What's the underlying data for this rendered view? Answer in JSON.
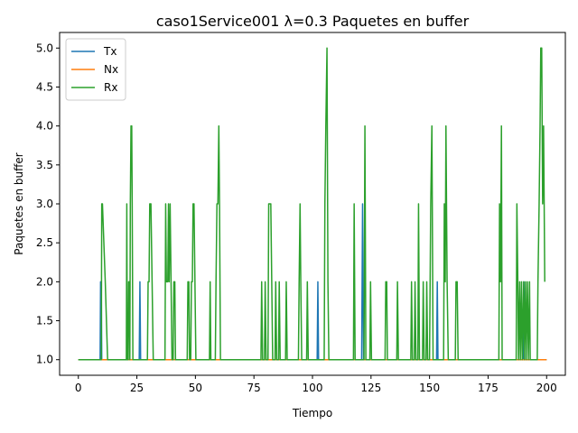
{
  "chart_data": {
    "type": "line",
    "title": "caso1Service001 λ=0.3 Paquetes en buffer",
    "xlabel": "Tiempo",
    "ylabel": "Paquetes en buffer",
    "xlim": [
      -8,
      208
    ],
    "ylim": [
      0.8,
      5.2
    ],
    "xticks": [
      0,
      25,
      50,
      75,
      100,
      125,
      150,
      175,
      200
    ],
    "xtick_labels": [
      "0",
      "25",
      "50",
      "75",
      "100",
      "125",
      "150",
      "175",
      "200"
    ],
    "yticks": [
      1.0,
      1.5,
      2.0,
      2.5,
      3.0,
      3.5,
      4.0,
      4.5,
      5.0
    ],
    "ytick_labels": [
      "1.0",
      "1.5",
      "2.0",
      "2.5",
      "3.0",
      "3.5",
      "4.0",
      "4.5",
      "5.0"
    ],
    "grid": false,
    "legend_position": "top-left",
    "series": [
      {
        "name": "Tx",
        "color": "#1f77b4",
        "points": [
          [
            0,
            1
          ],
          [
            9.3,
            1
          ],
          [
            9.5,
            2
          ],
          [
            9.8,
            2
          ],
          [
            10,
            1
          ],
          [
            26,
            1
          ],
          [
            26.3,
            2
          ],
          [
            26.6,
            1
          ],
          [
            102,
            1
          ],
          [
            102.3,
            2
          ],
          [
            102.6,
            1
          ],
          [
            121,
            1
          ],
          [
            121.4,
            3
          ],
          [
            121.8,
            1
          ],
          [
            153,
            1
          ],
          [
            153.3,
            2
          ],
          [
            153.6,
            1
          ],
          [
            155,
            1
          ],
          [
            190,
            1
          ],
          [
            190.3,
            2
          ],
          [
            190.6,
            1
          ],
          [
            200,
            1
          ]
        ]
      },
      {
        "name": "Nx",
        "color": "#ff7f0e",
        "points": [
          [
            0,
            1
          ],
          [
            200,
            1
          ]
        ]
      },
      {
        "name": "Rx",
        "color": "#2ca02c",
        "points": [
          [
            0,
            1
          ],
          [
            9.8,
            1
          ],
          [
            10,
            3
          ],
          [
            10.3,
            3
          ],
          [
            11.5,
            2
          ],
          [
            12.5,
            1
          ],
          [
            20.5,
            1
          ],
          [
            20.7,
            3
          ],
          [
            20.9,
            1
          ],
          [
            21.3,
            1
          ],
          [
            21.5,
            2
          ],
          [
            21.8,
            2
          ],
          [
            22,
            1
          ],
          [
            22.2,
            3
          ],
          [
            22.5,
            4
          ],
          [
            22.8,
            4
          ],
          [
            23,
            3
          ],
          [
            23.3,
            1
          ],
          [
            29.5,
            1
          ],
          [
            29.8,
            2
          ],
          [
            30.2,
            2
          ],
          [
            30.5,
            3
          ],
          [
            31,
            3
          ],
          [
            31.5,
            2
          ],
          [
            32,
            1
          ],
          [
            37,
            1
          ],
          [
            37.3,
            3
          ],
          [
            37.6,
            2
          ],
          [
            38.2,
            2
          ],
          [
            38.5,
            3
          ],
          [
            38.8,
            2
          ],
          [
            39.2,
            3
          ],
          [
            39.6,
            2
          ],
          [
            40,
            1
          ],
          [
            40.5,
            1
          ],
          [
            40.8,
            2
          ],
          [
            41.2,
            2
          ],
          [
            41.5,
            1
          ],
          [
            46.5,
            1
          ],
          [
            46.8,
            2
          ],
          [
            47.2,
            2
          ],
          [
            47.5,
            1
          ],
          [
            48,
            1
          ],
          [
            48.3,
            2
          ],
          [
            48.7,
            2
          ],
          [
            49,
            3
          ],
          [
            49.4,
            3
          ],
          [
            49.8,
            2
          ],
          [
            50.2,
            1
          ],
          [
            56,
            1
          ],
          [
            56.3,
            2
          ],
          [
            56.6,
            1
          ],
          [
            58.5,
            1
          ],
          [
            58.8,
            2
          ],
          [
            59.2,
            3
          ],
          [
            59.6,
            3
          ],
          [
            60,
            4
          ],
          [
            60.3,
            3
          ],
          [
            60.7,
            1
          ],
          [
            78,
            1
          ],
          [
            78.3,
            2
          ],
          [
            78.7,
            1
          ],
          [
            79.5,
            1
          ],
          [
            79.8,
            2
          ],
          [
            80.2,
            1
          ],
          [
            81,
            1
          ],
          [
            81.3,
            3
          ],
          [
            82.2,
            3
          ],
          [
            82.6,
            2
          ],
          [
            83,
            1
          ],
          [
            84,
            1
          ],
          [
            84.3,
            2
          ],
          [
            84.7,
            1
          ],
          [
            85.5,
            1
          ],
          [
            85.8,
            2
          ],
          [
            86.2,
            1
          ],
          [
            88.5,
            1
          ],
          [
            88.8,
            2
          ],
          [
            89.2,
            1
          ],
          [
            94,
            1
          ],
          [
            94.3,
            2
          ],
          [
            94.7,
            3
          ],
          [
            95,
            2
          ],
          [
            95.4,
            1
          ],
          [
            97.5,
            1
          ],
          [
            97.8,
            2
          ],
          [
            98.2,
            1
          ],
          [
            105,
            1
          ],
          [
            105.3,
            3
          ],
          [
            105.7,
            4
          ],
          [
            106.2,
            5
          ],
          [
            106.6,
            2
          ],
          [
            107,
            1
          ],
          [
            117.5,
            1
          ],
          [
            117.8,
            3
          ],
          [
            118.2,
            1
          ],
          [
            122,
            1
          ],
          [
            122.4,
            4
          ],
          [
            122.8,
            1
          ],
          [
            124.5,
            1
          ],
          [
            124.8,
            2
          ],
          [
            125.2,
            1
          ],
          [
            131,
            1
          ],
          [
            131.3,
            2
          ],
          [
            131.7,
            2
          ],
          [
            132,
            1
          ],
          [
            136,
            1
          ],
          [
            136.3,
            2
          ],
          [
            136.7,
            1
          ],
          [
            142,
            1
          ],
          [
            142.3,
            2
          ],
          [
            142.7,
            1
          ],
          [
            143.5,
            1
          ],
          [
            143.8,
            2
          ],
          [
            144.2,
            1
          ],
          [
            145,
            1
          ],
          [
            145.3,
            3
          ],
          [
            145.7,
            1
          ],
          [
            147,
            1
          ],
          [
            147.3,
            2
          ],
          [
            147.7,
            1
          ],
          [
            148.5,
            1
          ],
          [
            148.8,
            2
          ],
          [
            149.2,
            1
          ],
          [
            150,
            1
          ],
          [
            150.5,
            3
          ],
          [
            151,
            4
          ],
          [
            151.5,
            1
          ],
          [
            156,
            1
          ],
          [
            156.3,
            3
          ],
          [
            156.7,
            2
          ],
          [
            157,
            4
          ],
          [
            157.5,
            2
          ],
          [
            158,
            1
          ],
          [
            161,
            1
          ],
          [
            161.3,
            2
          ],
          [
            161.8,
            2
          ],
          [
            162.2,
            1
          ],
          [
            178,
            1
          ],
          [
            179.6,
            1
          ],
          [
            179.9,
            3
          ],
          [
            180.3,
            2
          ],
          [
            180.7,
            4
          ],
          [
            181,
            1
          ],
          [
            187,
            1
          ],
          [
            187.3,
            3
          ],
          [
            187.7,
            2
          ],
          [
            188,
            1
          ],
          [
            188.5,
            2
          ],
          [
            188.8,
            1
          ],
          [
            189.3,
            2
          ],
          [
            189.6,
            1
          ],
          [
            190.2,
            2
          ],
          [
            190.5,
            1
          ],
          [
            191,
            2
          ],
          [
            191.3,
            1
          ],
          [
            191.8,
            2
          ],
          [
            192.2,
            1
          ],
          [
            192.7,
            2
          ],
          [
            193,
            1
          ],
          [
            196,
            1
          ],
          [
            196.3,
            2
          ],
          [
            196.8,
            3
          ],
          [
            197.2,
            4
          ],
          [
            197.5,
            5
          ],
          [
            197.9,
            5
          ],
          [
            198.3,
            3
          ],
          [
            198.7,
            4
          ],
          [
            199.2,
            2
          ]
        ]
      }
    ]
  }
}
